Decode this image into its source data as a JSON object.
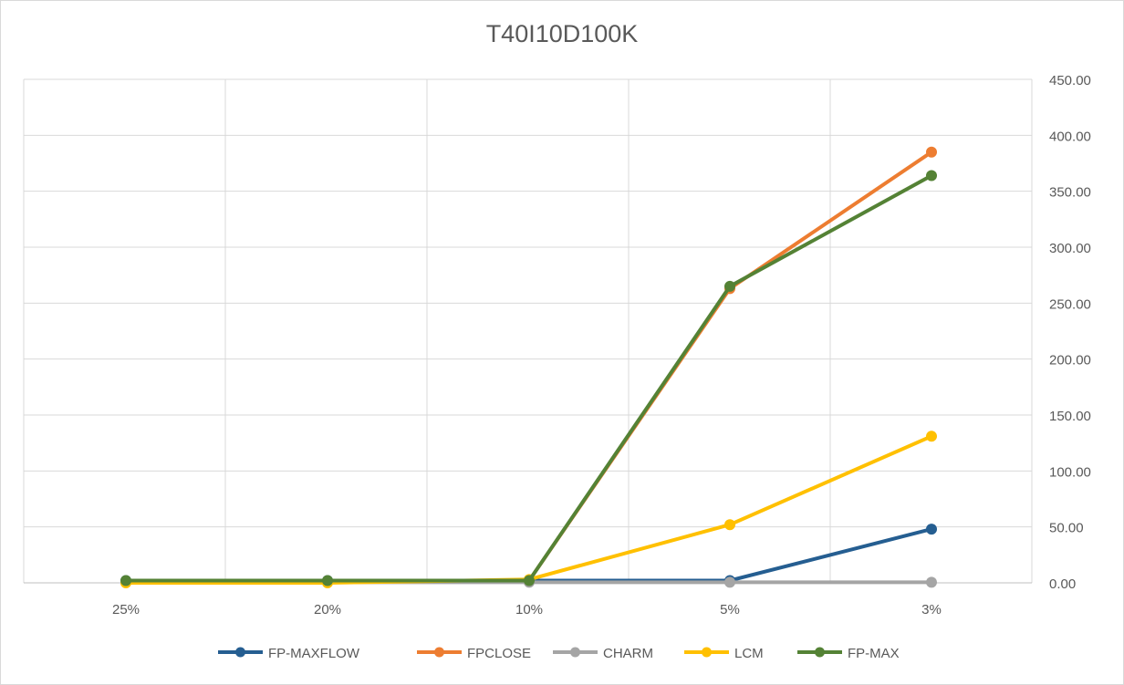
{
  "chart_data": {
    "type": "line",
    "title": "T40I10D100K",
    "xlabel": "",
    "ylabel": "",
    "categories": [
      "25%",
      "20%",
      "10%",
      "5%",
      "3%"
    ],
    "y_ticks": [
      "0.00",
      "50.00",
      "100.00",
      "150.00",
      "200.00",
      "250.00",
      "300.00",
      "350.00",
      "400.00",
      "450.00"
    ],
    "ylim": [
      0,
      450
    ],
    "y_axis_position": "right",
    "grid": true,
    "legend_position": "bottom",
    "series": [
      {
        "name": "FP-MAXFLOW",
        "color": "#255e91",
        "values": [
          2,
          2,
          2,
          2,
          48
        ]
      },
      {
        "name": "FPCLOSE",
        "color": "#ed7d31",
        "values": [
          1,
          1,
          2,
          263,
          385
        ]
      },
      {
        "name": "CHARM",
        "color": "#a5a5a5",
        "values": [
          0.5,
          0.5,
          0.5,
          0.5,
          0.5
        ]
      },
      {
        "name": "LCM",
        "color": "#ffc000",
        "values": [
          0,
          0,
          3,
          52,
          131
        ]
      },
      {
        "name": "FP-MAX",
        "color": "#548235",
        "values": [
          2,
          2,
          2,
          265,
          364
        ]
      }
    ]
  }
}
